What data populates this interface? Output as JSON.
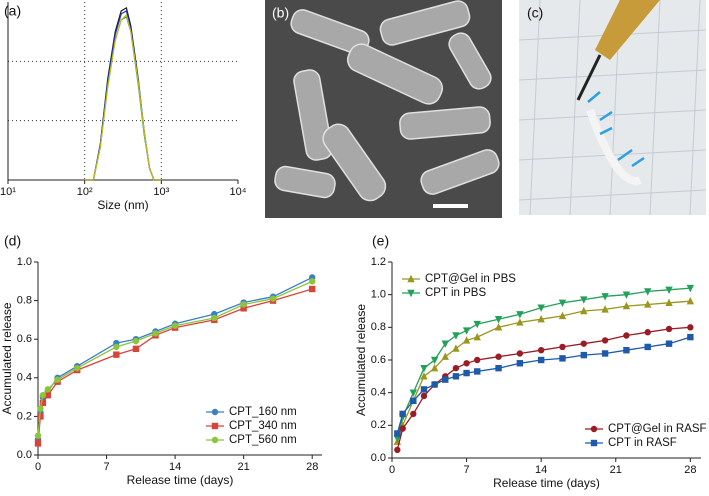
{
  "chart_data": [
    {
      "type": "line",
      "panel_label": "(a)",
      "xlabel": "Size (nm)",
      "xscale": "log",
      "xlim": [
        10,
        10000
      ],
      "xticks": [
        {
          "value": 10,
          "label": "10¹"
        },
        {
          "value": 100,
          "label": "10²"
        },
        {
          "value": 1000,
          "label": "10³"
        },
        {
          "value": 10000,
          "label": "10⁴"
        }
      ],
      "ylim": [
        0,
        30
      ],
      "ygrid": [
        10,
        20
      ],
      "xgrid": [
        100,
        1000
      ],
      "x": [
        100,
        130,
        160,
        200,
        250,
        300,
        350,
        400,
        500,
        600,
        700,
        800,
        1000
      ],
      "series": [
        {
          "color": "#1a1a1a",
          "values": [
            0,
            0,
            6,
            17,
            25,
            28.5,
            29,
            26,
            17,
            8,
            2,
            0,
            0
          ]
        },
        {
          "color": "#2233bb",
          "values": [
            0,
            0,
            6,
            16.5,
            24.5,
            28,
            28.5,
            25.5,
            16.5,
            8,
            2,
            0,
            0
          ]
        },
        {
          "color": "#2a9a5a",
          "values": [
            0,
            0,
            5.5,
            16,
            23.5,
            27,
            27.5,
            25,
            16,
            7.5,
            2,
            0,
            0
          ]
        },
        {
          "color": "#c8b820",
          "values": [
            0,
            0,
            5.5,
            15.5,
            23.5,
            27,
            27.8,
            25,
            16.5,
            8,
            2,
            0,
            0
          ]
        }
      ]
    },
    {
      "type": "line",
      "panel_label": "(d)",
      "xlabel": "Release time (days)",
      "ylabel": "Accumulated release",
      "xlim": [
        0,
        29
      ],
      "xticks": [
        0,
        7,
        14,
        21,
        28
      ],
      "ylim": [
        0,
        1.0
      ],
      "yticks": [
        {
          "value": 0,
          "label": "0.0"
        },
        0.2,
        0.4,
        0.6,
        0.8,
        {
          "value": 1.0,
          "label": "1.0"
        }
      ],
      "legend": "lower-right",
      "x": [
        0,
        0.25,
        0.5,
        1,
        2,
        4,
        8,
        10,
        12,
        14,
        18,
        21,
        24,
        28
      ],
      "series": [
        {
          "name": "CPT_160 nm",
          "color": "#3a7fc4",
          "marker": "circle",
          "values": [
            0.08,
            0.22,
            0.3,
            0.33,
            0.4,
            0.46,
            0.58,
            0.6,
            0.64,
            0.68,
            0.73,
            0.79,
            0.82,
            0.92
          ]
        },
        {
          "name": "CPT_340 nm",
          "color": "#d9443a",
          "marker": "square",
          "values": [
            0.06,
            0.2,
            0.27,
            0.31,
            0.38,
            0.44,
            0.52,
            0.55,
            0.62,
            0.66,
            0.7,
            0.76,
            0.8,
            0.86
          ]
        },
        {
          "name": "CPT_560 nm",
          "color": "#8cc43a",
          "marker": "circle",
          "values": [
            0.1,
            0.24,
            0.31,
            0.34,
            0.39,
            0.45,
            0.56,
            0.59,
            0.63,
            0.67,
            0.71,
            0.78,
            0.81,
            0.9
          ]
        }
      ]
    },
    {
      "type": "line",
      "panel_label": "(e)",
      "xlabel": "Release time (days)",
      "ylabel": "Accumulated release",
      "xlim": [
        0,
        29
      ],
      "xticks": [
        0,
        7,
        14,
        21,
        28
      ],
      "ylim": [
        0,
        1.2
      ],
      "yticks": [
        {
          "value": 0,
          "label": "0.0"
        },
        0.2,
        0.4,
        0.6,
        0.8,
        {
          "value": 1.0,
          "label": "1.0"
        },
        1.2
      ],
      "x": [
        0.5,
        1,
        2,
        3,
        4,
        5,
        6,
        7,
        8,
        10,
        12,
        14,
        16,
        18,
        20,
        22,
        24,
        26,
        28
      ],
      "series": [
        {
          "name": "CPT@Gel in PBS",
          "color": "#9a961e",
          "marker": "triangle-up",
          "legend": "upper-left",
          "values": [
            0.1,
            0.2,
            0.35,
            0.5,
            0.55,
            0.62,
            0.67,
            0.72,
            0.74,
            0.8,
            0.83,
            0.85,
            0.87,
            0.9,
            0.91,
            0.93,
            0.94,
            0.95,
            0.96
          ]
        },
        {
          "name": "CPT in PBS",
          "color": "#23a05a",
          "marker": "triangle-down",
          "legend": "upper-left",
          "values": [
            0.12,
            0.25,
            0.4,
            0.55,
            0.6,
            0.7,
            0.75,
            0.78,
            0.82,
            0.85,
            0.88,
            0.92,
            0.95,
            0.97,
            0.99,
            1.0,
            1.02,
            1.03,
            1.04
          ]
        },
        {
          "name": "CPT@Gel in RASF",
          "color": "#9a1c24",
          "marker": "circle",
          "legend": "lower-right",
          "values": [
            0.05,
            0.18,
            0.27,
            0.38,
            0.45,
            0.5,
            0.55,
            0.58,
            0.6,
            0.62,
            0.64,
            0.66,
            0.68,
            0.7,
            0.72,
            0.75,
            0.77,
            0.79,
            0.8
          ]
        },
        {
          "name": "CPT in RASF",
          "color": "#1f5aa8",
          "marker": "square",
          "legend": "lower-right",
          "values": [
            0.15,
            0.27,
            0.35,
            0.42,
            0.45,
            0.48,
            0.5,
            0.52,
            0.53,
            0.55,
            0.58,
            0.6,
            0.61,
            0.63,
            0.64,
            0.66,
            0.68,
            0.7,
            0.74
          ]
        }
      ]
    }
  ],
  "images": [
    {
      "panel_label": "(b)"
    },
    {
      "panel_label": "(c)"
    }
  ]
}
